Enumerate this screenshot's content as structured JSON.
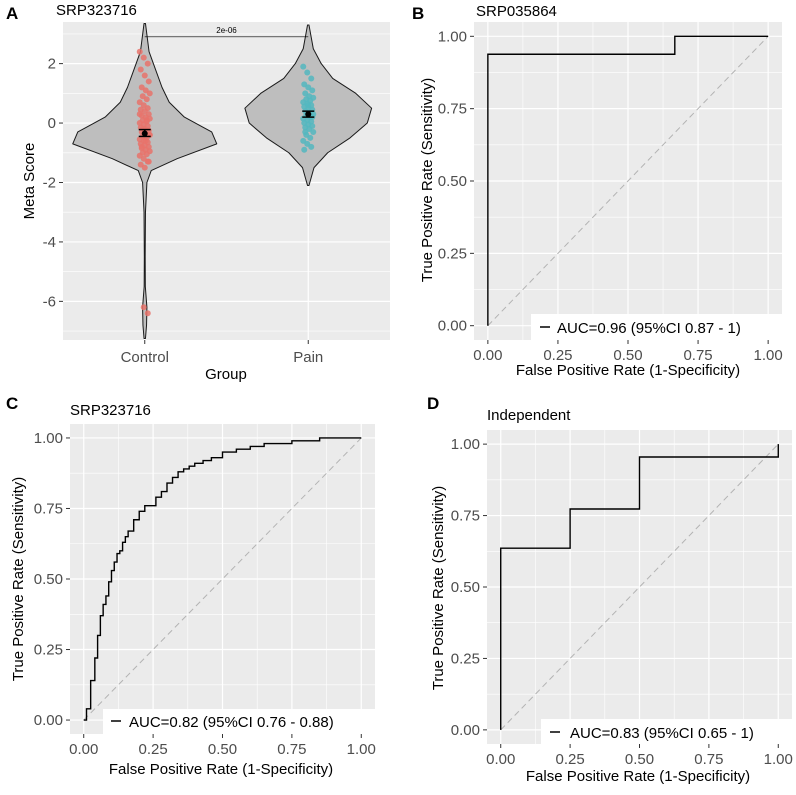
{
  "colors": {
    "panel_bg": "#ebebeb",
    "grid": "#ffffff",
    "violin_fill": "#bebebe",
    "control": "#e7736b",
    "pain": "#53b7bf",
    "curve": "#000000",
    "diagonal": "#b3b3b3"
  },
  "chart_data": [
    {
      "panel": "A",
      "title": "SRP323716",
      "type": "violin",
      "xlabel": "Group",
      "ylabel": "Meta Score",
      "categories": [
        "Control",
        "Pain"
      ],
      "ylim": [
        -7.3,
        3.4
      ],
      "yticks": [
        2,
        0,
        -2,
        -4,
        -6
      ],
      "ytick_labels": [
        "2",
        "0",
        "-2",
        "-4",
        "-6"
      ],
      "pvalue_label": "2e-06",
      "groups": [
        {
          "name": "Control",
          "mean": -0.35,
          "ci": [
            -0.45,
            -0.22
          ],
          "ymin": -7.25,
          "ymax": 3.35,
          "density": [
            [
              -7.25,
              0.01
            ],
            [
              -6.8,
              0.025
            ],
            [
              -6.2,
              0.03
            ],
            [
              -5.5,
              0.008
            ],
            [
              -4.5,
              0.006
            ],
            [
              -3.0,
              0.01
            ],
            [
              -2.0,
              0.03
            ],
            [
              -1.6,
              0.09
            ],
            [
              -1.2,
              0.45
            ],
            [
              -0.7,
              1.0
            ],
            [
              -0.3,
              0.93
            ],
            [
              0.2,
              0.55
            ],
            [
              0.7,
              0.34
            ],
            [
              1.2,
              0.24
            ],
            [
              1.8,
              0.15
            ],
            [
              2.4,
              0.06
            ],
            [
              3.35,
              0.01
            ]
          ],
          "points": [
            2.4,
            2.2,
            2.0,
            1.8,
            1.6,
            1.4,
            1.2,
            1.1,
            1.0,
            0.9,
            0.8,
            0.7,
            0.6,
            0.5,
            0.45,
            0.4,
            0.3,
            0.25,
            0.2,
            0.15,
            0.1,
            0.05,
            0.0,
            -0.05,
            -0.1,
            -0.15,
            -0.2,
            -0.25,
            -0.3,
            -0.35,
            -0.4,
            -0.45,
            -0.5,
            -0.55,
            -0.6,
            -0.65,
            -0.7,
            -0.75,
            -0.8,
            -0.85,
            -0.9,
            -0.95,
            -1.0,
            -1.05,
            -1.1,
            -1.2,
            -1.3,
            -1.4,
            -1.5,
            -1.3,
            -0.8,
            -0.6,
            -0.4,
            -0.2,
            0.1,
            0.3,
            -6.2,
            -6.4
          ]
        },
        {
          "name": "Pain",
          "mean": 0.3,
          "ci": [
            0.2,
            0.4
          ],
          "ymin": -2.1,
          "ymax": 3.3,
          "density": [
            [
              -2.1,
              0.01
            ],
            [
              -1.5,
              0.08
            ],
            [
              -1.0,
              0.27
            ],
            [
              -0.5,
              0.58
            ],
            [
              0.0,
              0.82
            ],
            [
              0.5,
              0.88
            ],
            [
              1.0,
              0.66
            ],
            [
              1.5,
              0.34
            ],
            [
              2.0,
              0.18
            ],
            [
              2.5,
              0.07
            ],
            [
              3.3,
              0.01
            ]
          ],
          "points": [
            1.9,
            1.7,
            1.5,
            1.3,
            1.2,
            1.1,
            1.0,
            0.9,
            0.85,
            0.8,
            0.75,
            0.7,
            0.65,
            0.6,
            0.55,
            0.5,
            0.45,
            0.4,
            0.35,
            0.3,
            0.25,
            0.2,
            0.15,
            0.1,
            0.05,
            0.0,
            -0.05,
            -0.1,
            -0.15,
            -0.2,
            -0.3,
            -0.4,
            -0.5,
            -0.6,
            -0.7,
            -0.8,
            -0.9,
            0.6,
            0.2,
            -0.3
          ]
        }
      ]
    },
    {
      "panel": "B",
      "title": "SRP035864",
      "type": "line",
      "xlabel": "False Positive Rate (1-Specificity)",
      "ylabel": "True Positive Rate (Sensitivity)",
      "xlim": [
        0,
        1
      ],
      "ylim": [
        0,
        1
      ],
      "ticks": [
        0,
        0.25,
        0.5,
        0.75,
        1.0
      ],
      "tick_labels": [
        "0.00",
        "0.25",
        "0.50",
        "0.75",
        "1.00"
      ],
      "legend": "AUC=0.96 (95%CI 0.87 - 1)",
      "x": [
        0,
        0,
        0.667,
        0.667,
        1.0
      ],
      "y": [
        0,
        0.938,
        0.938,
        1.0,
        1.0
      ]
    },
    {
      "panel": "C",
      "title": "SRP323716",
      "type": "line",
      "xlabel": "False Positive Rate (1-Specificity)",
      "ylabel": "True Positive Rate (Sensitivity)",
      "xlim": [
        0,
        1
      ],
      "ylim": [
        0,
        1
      ],
      "ticks": [
        0,
        0.25,
        0.5,
        0.75,
        1.0
      ],
      "tick_labels": [
        "0.00",
        "0.25",
        "0.50",
        "0.75",
        "1.00"
      ],
      "legend": "AUC=0.82 (95%CI 0.76 - 0.88)",
      "x": [
        0,
        0.01,
        0.01,
        0.025,
        0.025,
        0.04,
        0.04,
        0.05,
        0.05,
        0.06,
        0.06,
        0.07,
        0.07,
        0.08,
        0.08,
        0.09,
        0.09,
        0.1,
        0.1,
        0.11,
        0.11,
        0.12,
        0.12,
        0.13,
        0.13,
        0.14,
        0.14,
        0.15,
        0.15,
        0.16,
        0.16,
        0.18,
        0.18,
        0.2,
        0.2,
        0.22,
        0.22,
        0.26,
        0.26,
        0.28,
        0.28,
        0.3,
        0.3,
        0.32,
        0.32,
        0.34,
        0.34,
        0.36,
        0.36,
        0.38,
        0.38,
        0.4,
        0.4,
        0.43,
        0.43,
        0.46,
        0.46,
        0.5,
        0.5,
        0.55,
        0.55,
        0.6,
        0.6,
        0.65,
        0.65,
        0.75,
        0.75,
        0.85,
        0.85,
        1.0
      ],
      "y": [
        0,
        0,
        0.04,
        0.04,
        0.14,
        0.14,
        0.22,
        0.22,
        0.3,
        0.3,
        0.37,
        0.37,
        0.41,
        0.41,
        0.44,
        0.44,
        0.49,
        0.49,
        0.53,
        0.53,
        0.56,
        0.56,
        0.59,
        0.59,
        0.6,
        0.6,
        0.63,
        0.63,
        0.65,
        0.65,
        0.67,
        0.67,
        0.71,
        0.71,
        0.74,
        0.74,
        0.76,
        0.76,
        0.79,
        0.79,
        0.81,
        0.81,
        0.84,
        0.84,
        0.86,
        0.86,
        0.88,
        0.88,
        0.89,
        0.89,
        0.9,
        0.9,
        0.91,
        0.91,
        0.92,
        0.92,
        0.93,
        0.93,
        0.95,
        0.95,
        0.96,
        0.96,
        0.97,
        0.97,
        0.98,
        0.98,
        0.99,
        0.99,
        1.0,
        1.0
      ]
    },
    {
      "panel": "D",
      "title": "Independent",
      "type": "line",
      "xlabel": "False Positive Rate (1-Specificity)",
      "ylabel": "True Positive Rate (Sensitivity)",
      "xlim": [
        0,
        1
      ],
      "ylim": [
        0,
        1
      ],
      "ticks": [
        0,
        0.25,
        0.5,
        0.75,
        1.0
      ],
      "tick_labels": [
        "0.00",
        "0.25",
        "0.50",
        "0.75",
        "1.00"
      ],
      "legend": "AUC=0.83 (95%CI 0.65 - 1)",
      "x": [
        0,
        0,
        0.25,
        0.25,
        0.5,
        0.5,
        1.0,
        1.0
      ],
      "y": [
        0,
        0.636,
        0.636,
        0.773,
        0.773,
        0.955,
        0.955,
        1.0
      ]
    }
  ]
}
